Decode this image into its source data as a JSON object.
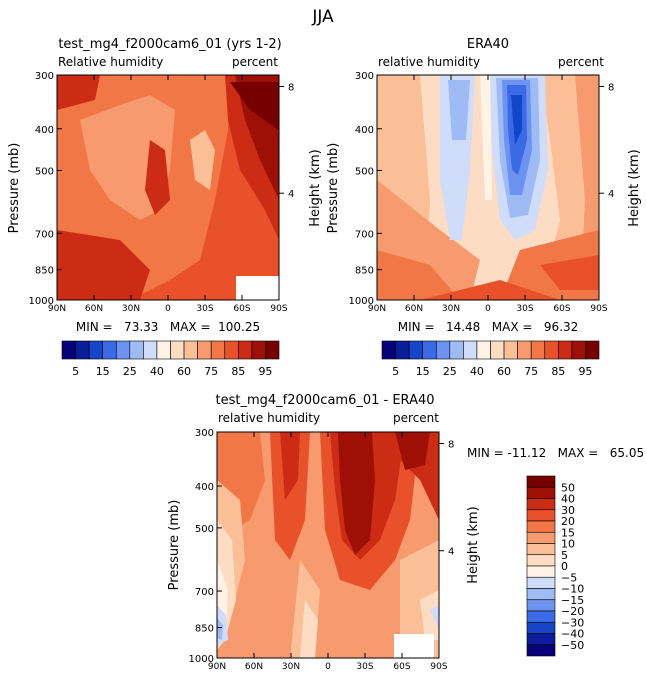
{
  "figure_title": "JJA",
  "panels": [
    {
      "title": "test_mg4_f2000cam6_01 (yrs 1-2)",
      "left_label": "Relative humidity",
      "right_label": "percent",
      "ylabel": "Pressure (mb)",
      "y2label": "Height (km)",
      "stats": "MIN =   73.33   MAX =  100.25"
    },
    {
      "title": "ERA40",
      "left_label": "relative humidity",
      "right_label": "percent",
      "ylabel": "Pressure (mb)",
      "y2label": "Height (km)",
      "stats": "MIN =   14.48   MAX =   96.32"
    },
    {
      "title": "test_mg4_f2000cam6_01 - ERA40",
      "left_label": "relative humidity",
      "right_label": "percent",
      "ylabel": "Pressure (mb)",
      "y2label": "Height (km)",
      "stats": "MIN = -11.12   MAX =   65.05"
    }
  ],
  "colors": {
    "abs": [
      "#08007a",
      "#0a1e9c",
      "#1545c9",
      "#3b6ae6",
      "#6c93f0",
      "#9ebbf5",
      "#cfdcfa",
      "#fff3e6",
      "#fddcc4",
      "#fbbf98",
      "#f79a6e",
      "#f27747",
      "#e8512a",
      "#cc2c14",
      "#9e0f06",
      "#760000"
    ],
    "diff": [
      "#08007a",
      "#0a1e9c",
      "#1545c9",
      "#3b6ae6",
      "#6c93f0",
      "#9ebbf5",
      "#cfdcfa",
      "#fff3e6",
      "#fddcc4",
      "#fbbf98",
      "#f79a6e",
      "#f27747",
      "#e8512a",
      "#cc2c14",
      "#9e0f06",
      "#760000"
    ]
  },
  "chart_data": [
    {
      "type": "heatmap",
      "title": "test_mg4_f2000cam6_01 (yrs 1-2)",
      "xlabel": "",
      "ylabel": "Pressure (mb)",
      "y2label": "Height (km)",
      "x_ticks": [
        "90N",
        "60N",
        "30N",
        "0",
        "30S",
        "60S",
        "90S"
      ],
      "y_ticks": [
        "300",
        "400",
        "500",
        "700",
        "850",
        "1000"
      ],
      "y2_ticks": [
        "8",
        "4"
      ],
      "xlim": [
        90,
        -90
      ],
      "ylim": [
        1000,
        300
      ],
      "y_scale": "log",
      "min": 73.33,
      "max": 100.25
    },
    {
      "type": "heatmap",
      "title": "ERA40",
      "xlabel": "",
      "ylabel": "Pressure (mb)",
      "y2label": "Height (km)",
      "x_ticks": [
        "90N",
        "60N",
        "30N",
        "0",
        "30S",
        "60S",
        "90S"
      ],
      "y_ticks": [
        "300",
        "400",
        "500",
        "700",
        "850",
        "1000"
      ],
      "y2_ticks": [
        "8",
        "4"
      ],
      "xlim": [
        90,
        -90
      ],
      "ylim": [
        1000,
        300
      ],
      "y_scale": "log",
      "min": 14.48,
      "max": 96.32
    },
    {
      "type": "heatmap",
      "title": "test_mg4_f2000cam6_01 - ERA40",
      "xlabel": "",
      "ylabel": "Pressure (mb)",
      "y2label": "Height (km)",
      "x_ticks": [
        "90N",
        "60N",
        "30N",
        "0",
        "30S",
        "60S",
        "90S"
      ],
      "y_ticks": [
        "300",
        "400",
        "500",
        "700",
        "850",
        "1000"
      ],
      "y2_ticks": [
        "8",
        "4"
      ],
      "xlim": [
        90,
        -90
      ],
      "ylim": [
        1000,
        300
      ],
      "y_scale": "log",
      "min": -11.12,
      "max": 65.05
    }
  ],
  "colorbar_abs": {
    "labels": [
      "5",
      "15",
      "25",
      "40",
      "60",
      "75",
      "85",
      "95"
    ]
  },
  "colorbar_diff": {
    "labels": [
      "50",
      "40",
      "30",
      "20",
      "15",
      "10",
      "5",
      "0",
      "−5",
      "−10",
      "−15",
      "−20",
      "−30",
      "−40",
      "−50"
    ]
  }
}
